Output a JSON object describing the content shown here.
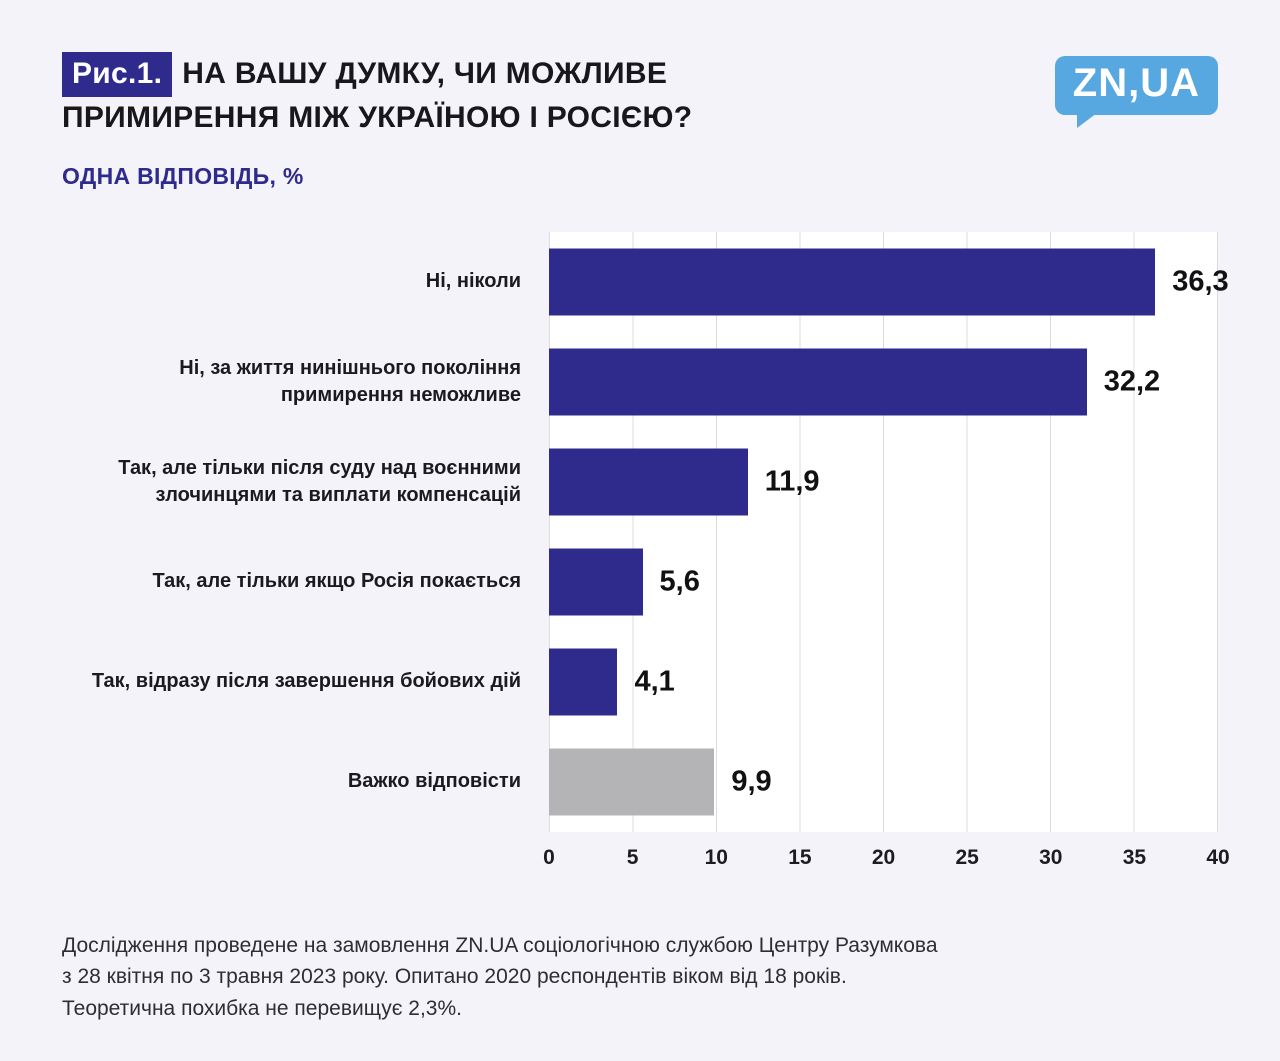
{
  "header": {
    "fig_label": "Рис.1.",
    "title_line1": "НА ВАШУ ДУМКУ, ЧИ МОЖЛИВЕ",
    "title_line2": "ПРИМИРЕННЯ МІЖ УКРАЇНОЮ І РОСІЄЮ?",
    "subtitle": "ОДНА ВІДПОВІДЬ, %",
    "logo_text": "ZN,UA"
  },
  "colors": {
    "accent_navy": "#2e2b8c",
    "neutral_gray": "#b4b4b6",
    "logo_blue": "#57a8e1",
    "background": "#f4f3f9"
  },
  "chart_data": {
    "type": "bar",
    "orientation": "horizontal",
    "title": "На Вашу думку, чи можливе примирення між Україною і Росією?",
    "subtitle": "Одна відповідь, %",
    "unit": "%",
    "categories": [
      "Ні, ніколи",
      "Ні, за життя нинішнього покоління примирення неможливе",
      "Так, але тільки після суду над воєнними злочинцями та виплати компенсацій",
      "Так, але тільки якщо Росія покається",
      "Так, відразу після завершення бойових дій",
      "Важко відповісти"
    ],
    "values": [
      36.3,
      32.2,
      11.9,
      5.6,
      4.1,
      9.9
    ],
    "value_labels": [
      "36,3",
      "32,2",
      "11,9",
      "5,6",
      "4,1",
      "9,9"
    ],
    "bar_colors": [
      "#2e2b8c",
      "#2e2b8c",
      "#2e2b8c",
      "#2e2b8c",
      "#2e2b8c",
      "#b4b4b6"
    ],
    "xlim": [
      0,
      40
    ],
    "xticks": [
      "0",
      "5",
      "10",
      "15",
      "20",
      "25",
      "30",
      "35",
      "40"
    ],
    "grid": true,
    "legend": false
  },
  "footer": {
    "line1": "Дослідження проведене на замовлення ZN.UA соціологічною службою Центру Разумкова",
    "line2": "з 28 квітня по 3 травня 2023 року. Опитано 2020 респондентів віком від 18 років.",
    "line3": "Теоретична похибка не перевищує 2,3%."
  }
}
